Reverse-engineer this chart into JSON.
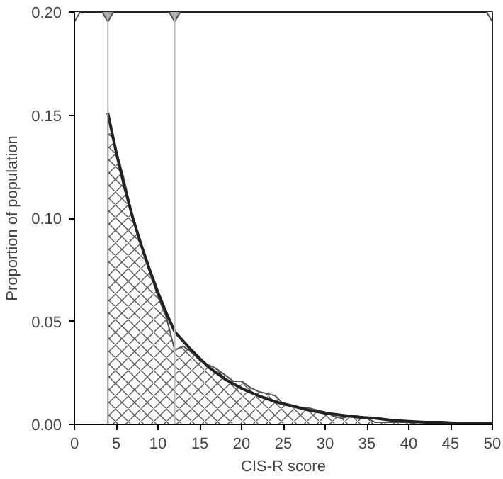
{
  "chart_data": {
    "type": "area",
    "xlabel": "CIS-R score",
    "ylabel": "Proportion of population",
    "xlim": [
      0,
      50
    ],
    "ylim": [
      0,
      0.2
    ],
    "xticks": [
      0,
      5,
      10,
      15,
      20,
      25,
      30,
      35,
      40,
      45,
      50
    ],
    "yticks": [
      {
        "value": 0,
        "label": "0.00"
      },
      {
        "value": 0.05,
        "label": "0.05"
      },
      {
        "value": 0.1,
        "label": "0.10"
      },
      {
        "value": 0.15,
        "label": "0.15"
      },
      {
        "value": 0.2,
        "label": "0.20"
      }
    ],
    "grid": false,
    "series": [
      {
        "color": "#555555",
        "x": [
          4,
          4,
          5,
          6,
          7,
          8,
          9,
          10,
          11,
          12,
          13,
          14,
          15,
          16,
          17,
          18,
          19,
          20,
          21,
          22,
          23,
          24,
          25,
          26,
          27,
          28,
          29,
          30,
          31,
          32,
          33,
          34,
          35,
          36,
          37,
          38,
          39,
          40,
          41,
          42,
          43,
          44,
          45
        ],
        "values": [
          0,
          0.15,
          0.133,
          0.118,
          0.1,
          0.087,
          0.074,
          0.062,
          0.052,
          0.036,
          0.038,
          0.035,
          0.031,
          0.029,
          0.027,
          0.024,
          0.021,
          0.021,
          0.018,
          0.016,
          0.015,
          0.014,
          0.01,
          0.009,
          0.008,
          0.008,
          0.007,
          0.006,
          0.004,
          0.003,
          0.004,
          0.004,
          0.003,
          0.001,
          0.001,
          0.001,
          0.001,
          0.001,
          0,
          0,
          0,
          0,
          0
        ]
      },
      {
        "type": "line",
        "color": "#222222",
        "line_style": "solid",
        "x": [
          4,
          5,
          6,
          7,
          8,
          9,
          10,
          11,
          12,
          14,
          16,
          18,
          20,
          22,
          24,
          26,
          28,
          30,
          32,
          34,
          36,
          38,
          40,
          42,
          44,
          46,
          48,
          50
        ],
        "values": [
          0.151,
          0.132,
          0.115,
          0.1,
          0.087,
          0.075,
          0.064,
          0.054,
          0.045,
          0.036,
          0.028,
          0.022,
          0.0175,
          0.014,
          0.011,
          0.009,
          0.007,
          0.0055,
          0.0045,
          0.0035,
          0.003,
          0.002,
          0.0015,
          0.001,
          0.001,
          0.0005,
          0.0005,
          0.0005
        ]
      },
      {
        "type": "scatter",
        "marker": "triangle",
        "x": [
          0,
          4,
          12,
          50
        ],
        "values": [
          0.2,
          0.2,
          0.2,
          0.2
        ],
        "colors": [
          "#ffffff",
          "#aaaaaa",
          "#aaaaaa",
          "#ffffff"
        ]
      }
    ],
    "ref_lines": [
      {
        "axis": "x",
        "value": 4,
        "color": "#bbbbbb"
      },
      {
        "axis": "x",
        "value": 12,
        "color": "#bbbbbb"
      }
    ]
  }
}
